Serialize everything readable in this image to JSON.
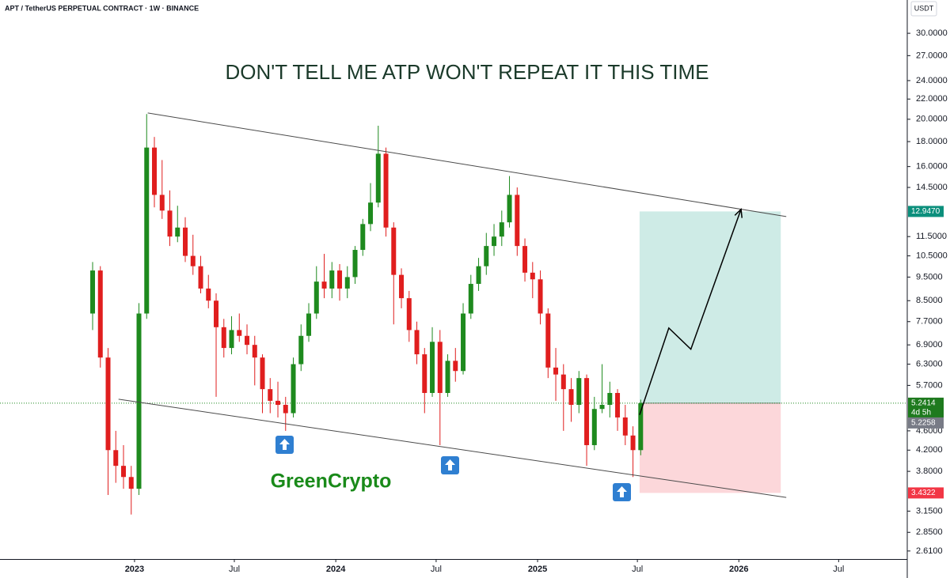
{
  "chart_data": {
    "type": "candlestick",
    "symbol_header": "APT / TetherUS PERPETUAL CONTRACT · 1W · BINANCE",
    "currency": "USDT",
    "title": "DON'T TELL ME ATP WON'T REPEAT IT THIS TIME",
    "watermark": "GreenCrypto",
    "log_scale": true,
    "up_color": "#1e8a1e",
    "down_color": "#e01e1e",
    "xlim": [
      "2022-05-02",
      "2026-11-01"
    ],
    "ylim": [
      2.513,
      35.1
    ],
    "xticks": [
      {
        "value": "2023-01-01",
        "label": "2023"
      },
      {
        "value": "2023-07-01",
        "label": "Jul"
      },
      {
        "value": "2024-01-01",
        "label": "2024"
      },
      {
        "value": "2024-07-01",
        "label": "Jul"
      },
      {
        "value": "2025-01-01",
        "label": "2025"
      },
      {
        "value": "2025-07-01",
        "label": "Jul"
      },
      {
        "value": "2026-01-01",
        "label": "2026"
      },
      {
        "value": "2026-07-01",
        "label": "Jul"
      }
    ],
    "yticks": [
      {
        "value": 30,
        "label": "30.0000"
      },
      {
        "value": 27,
        "label": "27.0000"
      },
      {
        "value": 24,
        "label": "24.0000"
      },
      {
        "value": 22,
        "label": "22.0000"
      },
      {
        "value": 20,
        "label": "20.0000"
      },
      {
        "value": 18,
        "label": "18.0000"
      },
      {
        "value": 16,
        "label": "16.0000"
      },
      {
        "value": 14.5,
        "label": "14.5000"
      },
      {
        "value": 11.5,
        "label": "11.5000"
      },
      {
        "value": 10.5,
        "label": "10.5000"
      },
      {
        "value": 9.5,
        "label": "9.5000"
      },
      {
        "value": 8.5,
        "label": "8.5000"
      },
      {
        "value": 7.7,
        "label": "7.7000"
      },
      {
        "value": 6.9,
        "label": "6.9000"
      },
      {
        "value": 6.3,
        "label": "6.3000"
      },
      {
        "value": 5.7,
        "label": "5.7000"
      },
      {
        "value": 4.6,
        "label": "4.6000"
      },
      {
        "value": 4.2,
        "label": "4.2000"
      },
      {
        "value": 3.8,
        "label": "3.8000"
      },
      {
        "value": 3.15,
        "label": "3.1500"
      },
      {
        "value": 2.85,
        "label": "2.8500"
      },
      {
        "value": 2.61,
        "label": "2.6100"
      }
    ],
    "candles": {
      "x": [
        "2022-10-17",
        "2022-10-31",
        "2022-11-14",
        "2022-11-28",
        "2022-12-12",
        "2022-12-26",
        "2023-01-09",
        "2023-01-23",
        "2023-02-06",
        "2023-02-20",
        "2023-03-06",
        "2023-03-20",
        "2023-04-03",
        "2023-04-17",
        "2023-05-01",
        "2023-05-15",
        "2023-05-29",
        "2023-06-12",
        "2023-06-26",
        "2023-07-10",
        "2023-07-24",
        "2023-08-07",
        "2023-08-21",
        "2023-09-04",
        "2023-09-18",
        "2023-10-02",
        "2023-10-16",
        "2023-10-30",
        "2023-11-13",
        "2023-11-27",
        "2023-12-11",
        "2023-12-25",
        "2024-01-08",
        "2024-01-22",
        "2024-02-05",
        "2024-02-19",
        "2024-03-04",
        "2024-03-18",
        "2024-04-01",
        "2024-04-15",
        "2024-04-29",
        "2024-05-13",
        "2024-05-27",
        "2024-06-10",
        "2024-06-24",
        "2024-07-08",
        "2024-07-22",
        "2024-08-05",
        "2024-08-19",
        "2024-09-02",
        "2024-09-16",
        "2024-09-30",
        "2024-10-14",
        "2024-10-28",
        "2024-11-11",
        "2024-11-25",
        "2024-12-09",
        "2024-12-23",
        "2025-01-06",
        "2025-01-20",
        "2025-02-03",
        "2025-02-17",
        "2025-03-03",
        "2025-03-17",
        "2025-03-31",
        "2025-04-14",
        "2025-04-28",
        "2025-05-12",
        "2025-05-26",
        "2025-06-09",
        "2025-06-23",
        "2025-07-07"
      ],
      "open": [
        8.0,
        9.8,
        6.5,
        4.2,
        3.9,
        3.7,
        3.5,
        8.0,
        17.5,
        14.0,
        13.0,
        11.5,
        12.0,
        10.5,
        10.0,
        9.0,
        8.5,
        7.5,
        6.8,
        7.4,
        7.2,
        6.9,
        6.5,
        5.6,
        5.3,
        5.2,
        5.0,
        6.3,
        7.2,
        8.0,
        9.3,
        9.0,
        9.8,
        9.0,
        9.5,
        10.8,
        12.2,
        13.5,
        17.0,
        12.0,
        9.6,
        8.6,
        7.4,
        6.6,
        5.5,
        7.0,
        5.5,
        6.4,
        6.1,
        8.0,
        9.2,
        10.0,
        11.0,
        11.5,
        12.3,
        14.0,
        11.0,
        9.7,
        9.4,
        8.0,
        6.2,
        6.0,
        5.6,
        5.2,
        5.9,
        4.3,
        5.1,
        5.2,
        5.5,
        4.9,
        4.5,
        4.2
      ],
      "high": [
        10.2,
        10.0,
        6.8,
        4.6,
        4.3,
        3.9,
        8.4,
        20.5,
        18.4,
        16.5,
        14.3,
        13.3,
        12.6,
        11.6,
        10.5,
        9.6,
        8.8,
        7.8,
        7.9,
        8.0,
        7.6,
        7.2,
        6.6,
        5.9,
        5.8,
        5.4,
        6.5,
        7.6,
        8.4,
        10.0,
        10.6,
        10.2,
        10.1,
        10.0,
        11.0,
        12.5,
        14.8,
        19.4,
        17.5,
        12.3,
        9.9,
        8.9,
        7.7,
        6.8,
        7.5,
        7.4,
        6.6,
        6.8,
        8.4,
        9.6,
        10.4,
        11.7,
        12.2,
        13.0,
        15.3,
        14.5,
        11.4,
        10.2,
        9.8,
        8.2,
        6.8,
        6.3,
        5.9,
        6.1,
        6.0,
        5.4,
        6.3,
        5.8,
        5.6,
        5.2,
        4.7,
        5.33
      ],
      "low": [
        7.4,
        6.2,
        3.4,
        3.6,
        3.5,
        3.1,
        3.4,
        7.8,
        13.2,
        12.5,
        11.0,
        11.2,
        10.2,
        9.6,
        8.8,
        8.2,
        5.4,
        6.5,
        6.6,
        7.0,
        6.6,
        5.7,
        5.0,
        5.0,
        4.9,
        4.6,
        4.9,
        6.1,
        7.0,
        7.8,
        8.6,
        8.6,
        8.5,
        8.6,
        9.2,
        10.5,
        11.8,
        13.2,
        11.5,
        7.6,
        8.2,
        7.0,
        6.3,
        5.0,
        5.4,
        4.3,
        5.4,
        5.8,
        6.0,
        7.8,
        8.9,
        9.6,
        10.5,
        11.0,
        12.0,
        10.5,
        9.3,
        8.6,
        7.6,
        5.9,
        5.3,
        4.6,
        4.8,
        5.0,
        3.9,
        4.2,
        5.0,
        4.9,
        4.6,
        4.3,
        3.7,
        4.1
      ],
      "close": [
        9.8,
        6.5,
        4.2,
        3.9,
        3.7,
        3.5,
        8.0,
        17.5,
        14.0,
        13.0,
        11.5,
        12.0,
        10.5,
        10.0,
        9.0,
        8.5,
        7.5,
        6.8,
        7.4,
        7.2,
        6.9,
        6.5,
        5.6,
        5.3,
        5.2,
        5.0,
        6.3,
        7.2,
        8.0,
        9.3,
        9.0,
        9.8,
        9.0,
        9.5,
        10.8,
        12.2,
        13.5,
        17.0,
        12.0,
        9.6,
        8.6,
        7.4,
        6.6,
        5.5,
        7.0,
        5.5,
        6.4,
        6.1,
        8.0,
        9.2,
        10.0,
        11.0,
        11.5,
        12.3,
        14.0,
        11.0,
        9.7,
        9.4,
        8.0,
        6.2,
        6.0,
        5.6,
        5.2,
        5.9,
        4.3,
        5.1,
        5.2,
        5.5,
        4.9,
        4.5,
        4.2,
        5.24
      ]
    },
    "channel": [
      {
        "x": [
          "2023-01-25",
          "2026-03-28"
        ],
        "y": [
          20.6,
          12.64
        ]
      },
      {
        "x": [
          "2022-12-03",
          "2026-03-28"
        ],
        "y": [
          5.34,
          3.36
        ]
      }
    ],
    "projection": {
      "x": [
        "2025-07-05",
        "2025-08-27",
        "2025-10-06",
        "2026-01-05"
      ],
      "y": [
        4.96,
        7.47,
        6.76,
        13.08
      ]
    },
    "position": {
      "start": "2025-07-05",
      "end": "2026-03-18",
      "entry": 5.2414,
      "target": 12.947,
      "target_label": "12.9470",
      "stop": 3.4322,
      "stop_label": "3.4322"
    },
    "last_price": {
      "value": 5.2414,
      "label": "5.2414",
      "countdown": "4d 5h"
    },
    "mark_price": {
      "value": 5.2258,
      "label": "5.2258"
    }
  }
}
